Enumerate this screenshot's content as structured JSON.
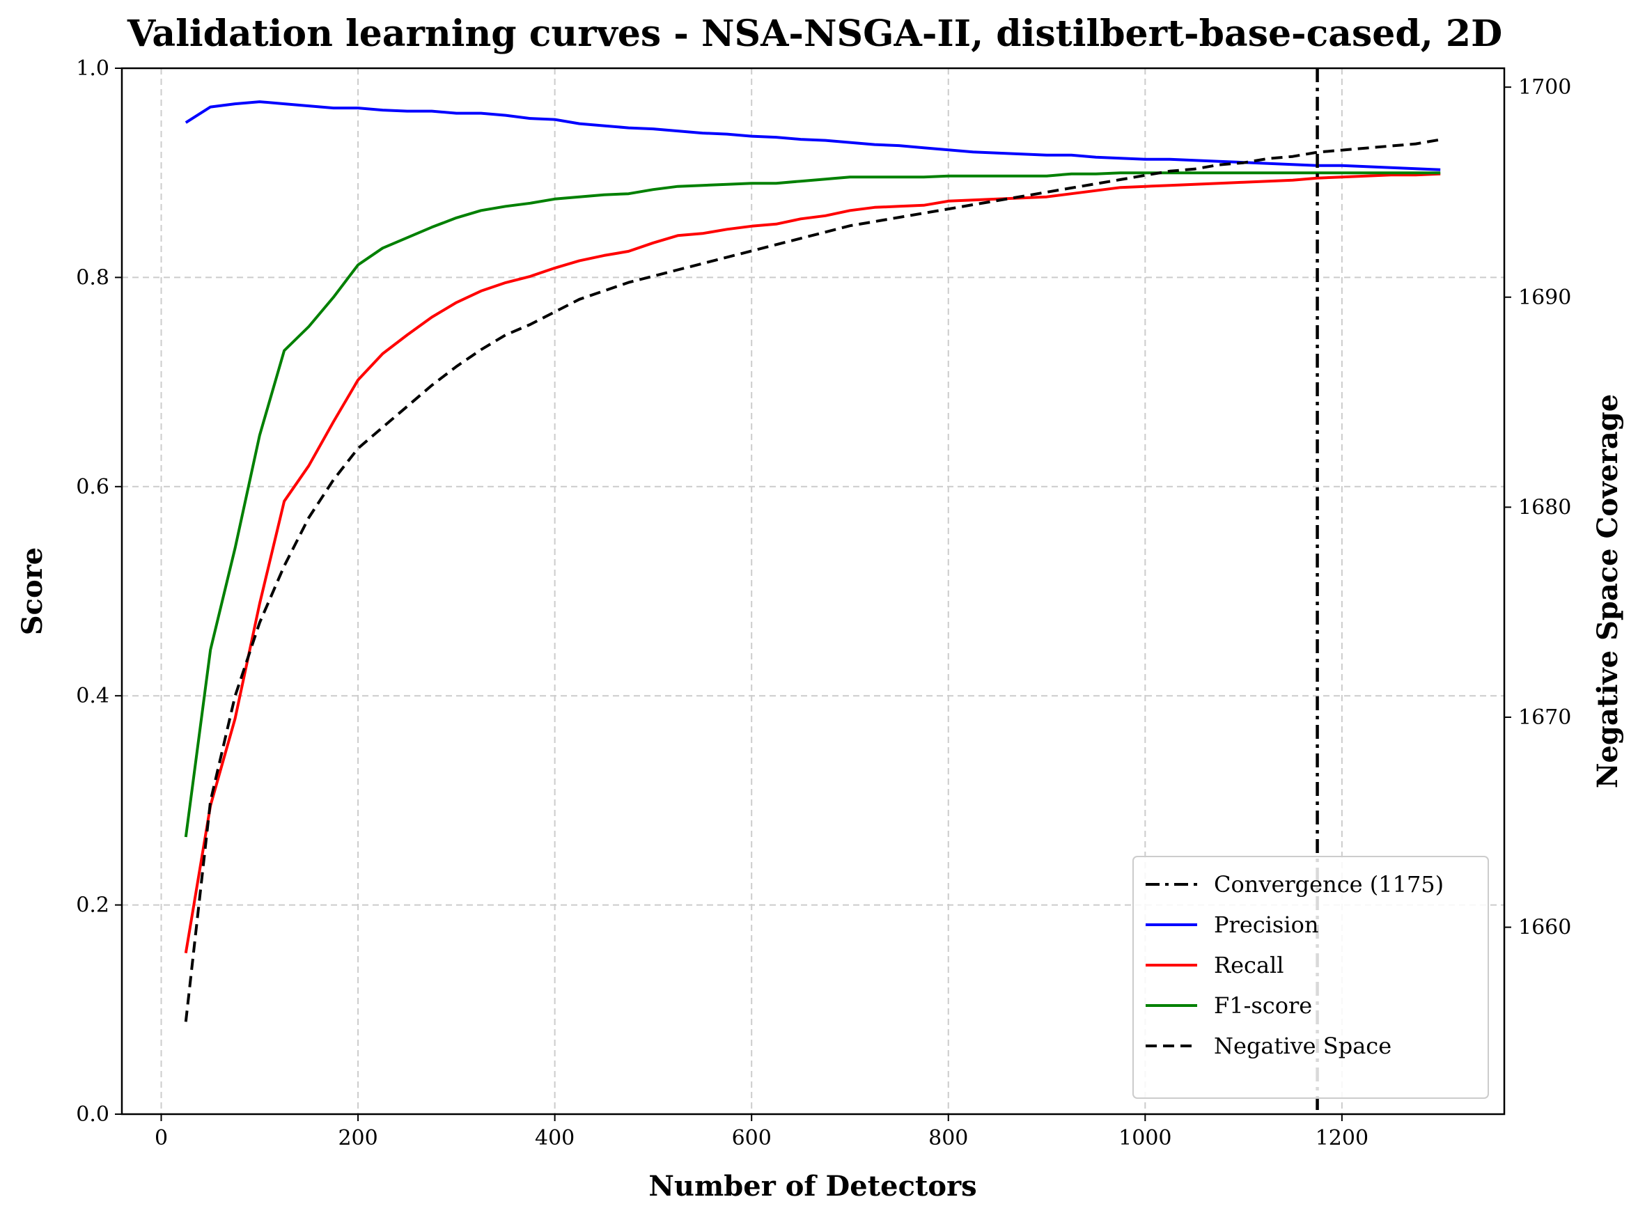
{
  "chart_data": {
    "type": "line",
    "title": "Validation learning curves - NSA-NSGA-II, distilbert-base-cased, 2D",
    "xlabel": "Number of Detectors",
    "ylabel": "Score",
    "y2label": "Negative Space Coverage",
    "xlim": [
      -40,
      1365
    ],
    "ylim": [
      0,
      1
    ],
    "y2lim": [
      1651.1,
      1700.9
    ],
    "xticks": [
      0,
      200,
      400,
      600,
      800,
      1000,
      1200
    ],
    "yticks": [
      0.0,
      0.2,
      0.4,
      0.6,
      0.8,
      1.0
    ],
    "y2ticks": [
      1660,
      1670,
      1680,
      1690,
      1700
    ],
    "grid": true,
    "legend_position": "lower-right",
    "convergence": {
      "label": "Convergence (1175)",
      "x": 1175,
      "color": "#000000",
      "style": "dashdot"
    },
    "x": [
      25,
      50,
      75,
      100,
      125,
      150,
      175,
      200,
      225,
      250,
      275,
      300,
      325,
      350,
      375,
      400,
      425,
      450,
      475,
      500,
      525,
      550,
      575,
      600,
      625,
      650,
      675,
      700,
      725,
      750,
      775,
      800,
      825,
      850,
      875,
      900,
      925,
      950,
      975,
      1000,
      1025,
      1050,
      1075,
      1100,
      1125,
      1150,
      1175,
      1200,
      1225,
      1250,
      1275,
      1300
    ],
    "series": [
      {
        "name": "Precision",
        "axis": "left",
        "color": "#0000ff",
        "style": "solid",
        "values": [
          0.948,
          0.963,
          0.966,
          0.968,
          0.966,
          0.964,
          0.962,
          0.962,
          0.96,
          0.959,
          0.959,
          0.957,
          0.957,
          0.955,
          0.952,
          0.951,
          0.947,
          0.945,
          0.943,
          0.942,
          0.94,
          0.938,
          0.937,
          0.935,
          0.934,
          0.932,
          0.931,
          0.929,
          0.927,
          0.926,
          0.924,
          0.922,
          0.92,
          0.919,
          0.918,
          0.917,
          0.917,
          0.915,
          0.914,
          0.913,
          0.913,
          0.912,
          0.911,
          0.91,
          0.909,
          0.908,
          0.907,
          0.907,
          0.906,
          0.905,
          0.904,
          0.903
        ]
      },
      {
        "name": "Recall",
        "axis": "left",
        "color": "#ff0000",
        "style": "solid",
        "values": [
          0.154,
          0.295,
          0.378,
          0.488,
          0.586,
          0.62,
          0.662,
          0.702,
          0.727,
          0.745,
          0.762,
          0.776,
          0.787,
          0.795,
          0.801,
          0.809,
          0.816,
          0.821,
          0.825,
          0.833,
          0.84,
          0.842,
          0.846,
          0.849,
          0.851,
          0.856,
          0.859,
          0.864,
          0.867,
          0.868,
          0.869,
          0.873,
          0.874,
          0.875,
          0.876,
          0.877,
          0.88,
          0.883,
          0.886,
          0.887,
          0.888,
          0.889,
          0.89,
          0.891,
          0.892,
          0.893,
          0.895,
          0.896,
          0.897,
          0.898,
          0.898,
          0.899
        ]
      },
      {
        "name": "F1-score",
        "axis": "left",
        "color": "#008000",
        "style": "solid",
        "values": [
          0.265,
          0.444,
          0.541,
          0.649,
          0.73,
          0.753,
          0.781,
          0.812,
          0.828,
          0.838,
          0.848,
          0.857,
          0.864,
          0.868,
          0.871,
          0.875,
          0.877,
          0.879,
          0.88,
          0.884,
          0.887,
          0.888,
          0.889,
          0.89,
          0.89,
          0.892,
          0.894,
          0.896,
          0.896,
          0.896,
          0.896,
          0.897,
          0.897,
          0.897,
          0.897,
          0.897,
          0.899,
          0.899,
          0.9,
          0.9,
          0.9,
          0.9,
          0.9,
          0.9,
          0.9,
          0.9,
          0.9,
          0.9,
          0.9,
          0.9,
          0.9,
          0.9
        ]
      },
      {
        "name": "Negative Space",
        "axis": "right",
        "color": "#000000",
        "style": "dashed",
        "values": [
          1655.5,
          1666.0,
          1671.0,
          1674.5,
          1677.2,
          1679.5,
          1681.3,
          1682.8,
          1683.8,
          1684.8,
          1685.8,
          1686.7,
          1687.5,
          1688.2,
          1688.7,
          1689.3,
          1689.9,
          1690.3,
          1690.7,
          1691.0,
          1691.3,
          1691.6,
          1691.9,
          1692.2,
          1692.5,
          1692.8,
          1693.1,
          1693.4,
          1693.6,
          1693.8,
          1694.0,
          1694.2,
          1694.4,
          1694.6,
          1694.8,
          1695.0,
          1695.2,
          1695.4,
          1695.6,
          1695.8,
          1696.0,
          1696.1,
          1696.3,
          1696.4,
          1696.6,
          1696.7,
          1696.9,
          1697.0,
          1697.1,
          1697.2,
          1697.3,
          1697.5
        ]
      }
    ],
    "legend": [
      {
        "label": "Convergence (1175)",
        "color": "#000000",
        "style": "dashdot"
      },
      {
        "label": "Precision",
        "color": "#0000ff",
        "style": "solid"
      },
      {
        "label": "Recall",
        "color": "#ff0000",
        "style": "solid"
      },
      {
        "label": "F1-score",
        "color": "#008000",
        "style": "solid"
      },
      {
        "label": "Negative Space",
        "color": "#000000",
        "style": "dashed"
      }
    ]
  }
}
